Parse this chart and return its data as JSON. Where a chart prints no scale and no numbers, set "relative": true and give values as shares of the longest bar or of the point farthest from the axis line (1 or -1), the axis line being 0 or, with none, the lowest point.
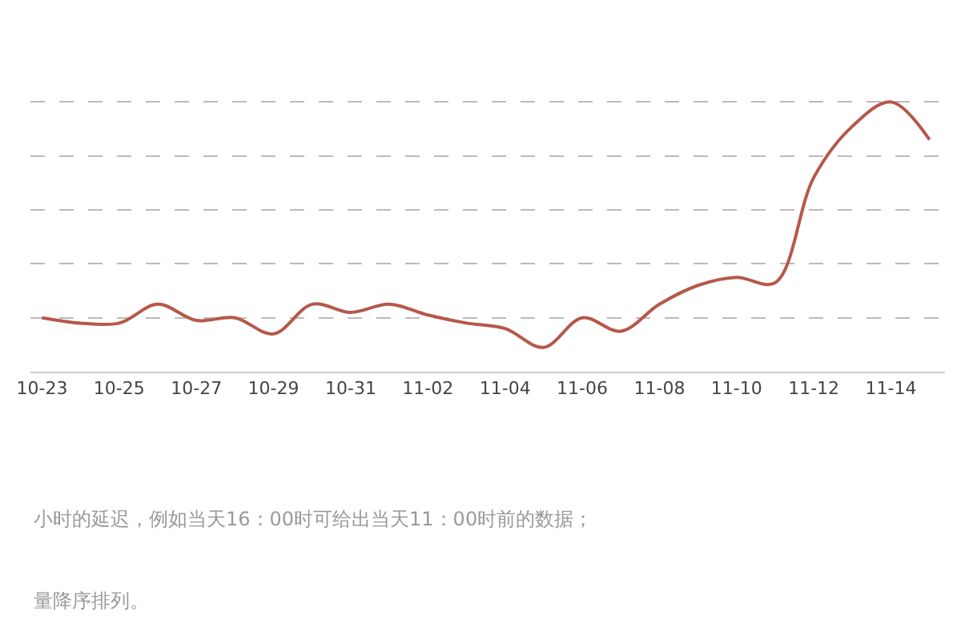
{
  "chart_data": {
    "type": "line",
    "relative": true,
    "grid": "y",
    "legend": false,
    "marker": "none",
    "line_style": "solid",
    "categories": [
      "10-23",
      null,
      "10-25",
      null,
      "10-27",
      null,
      "10-29",
      null,
      "10-31",
      null,
      "11-02",
      null,
      "11-04",
      null,
      "11-06",
      null,
      "11-08",
      null,
      "11-10",
      null,
      "11-12",
      null,
      "11-14",
      null
    ],
    "series": [
      {
        "color": "#b5584a",
        "values": [
          0.2,
          0.18,
          0.18,
          0.25,
          0.19,
          0.2,
          0.14,
          0.25,
          0.22,
          0.25,
          0.21,
          0.18,
          0.16,
          0.09,
          0.2,
          0.15,
          0.25,
          0.32,
          0.35,
          0.33,
          0.72,
          0.91,
          1,
          0.86
        ]
      }
    ],
    "annotations": [
      "小时的延迟，例如当天16：00时可给出当天11：00时前的数据；",
      "量降序排列。"
    ]
  }
}
